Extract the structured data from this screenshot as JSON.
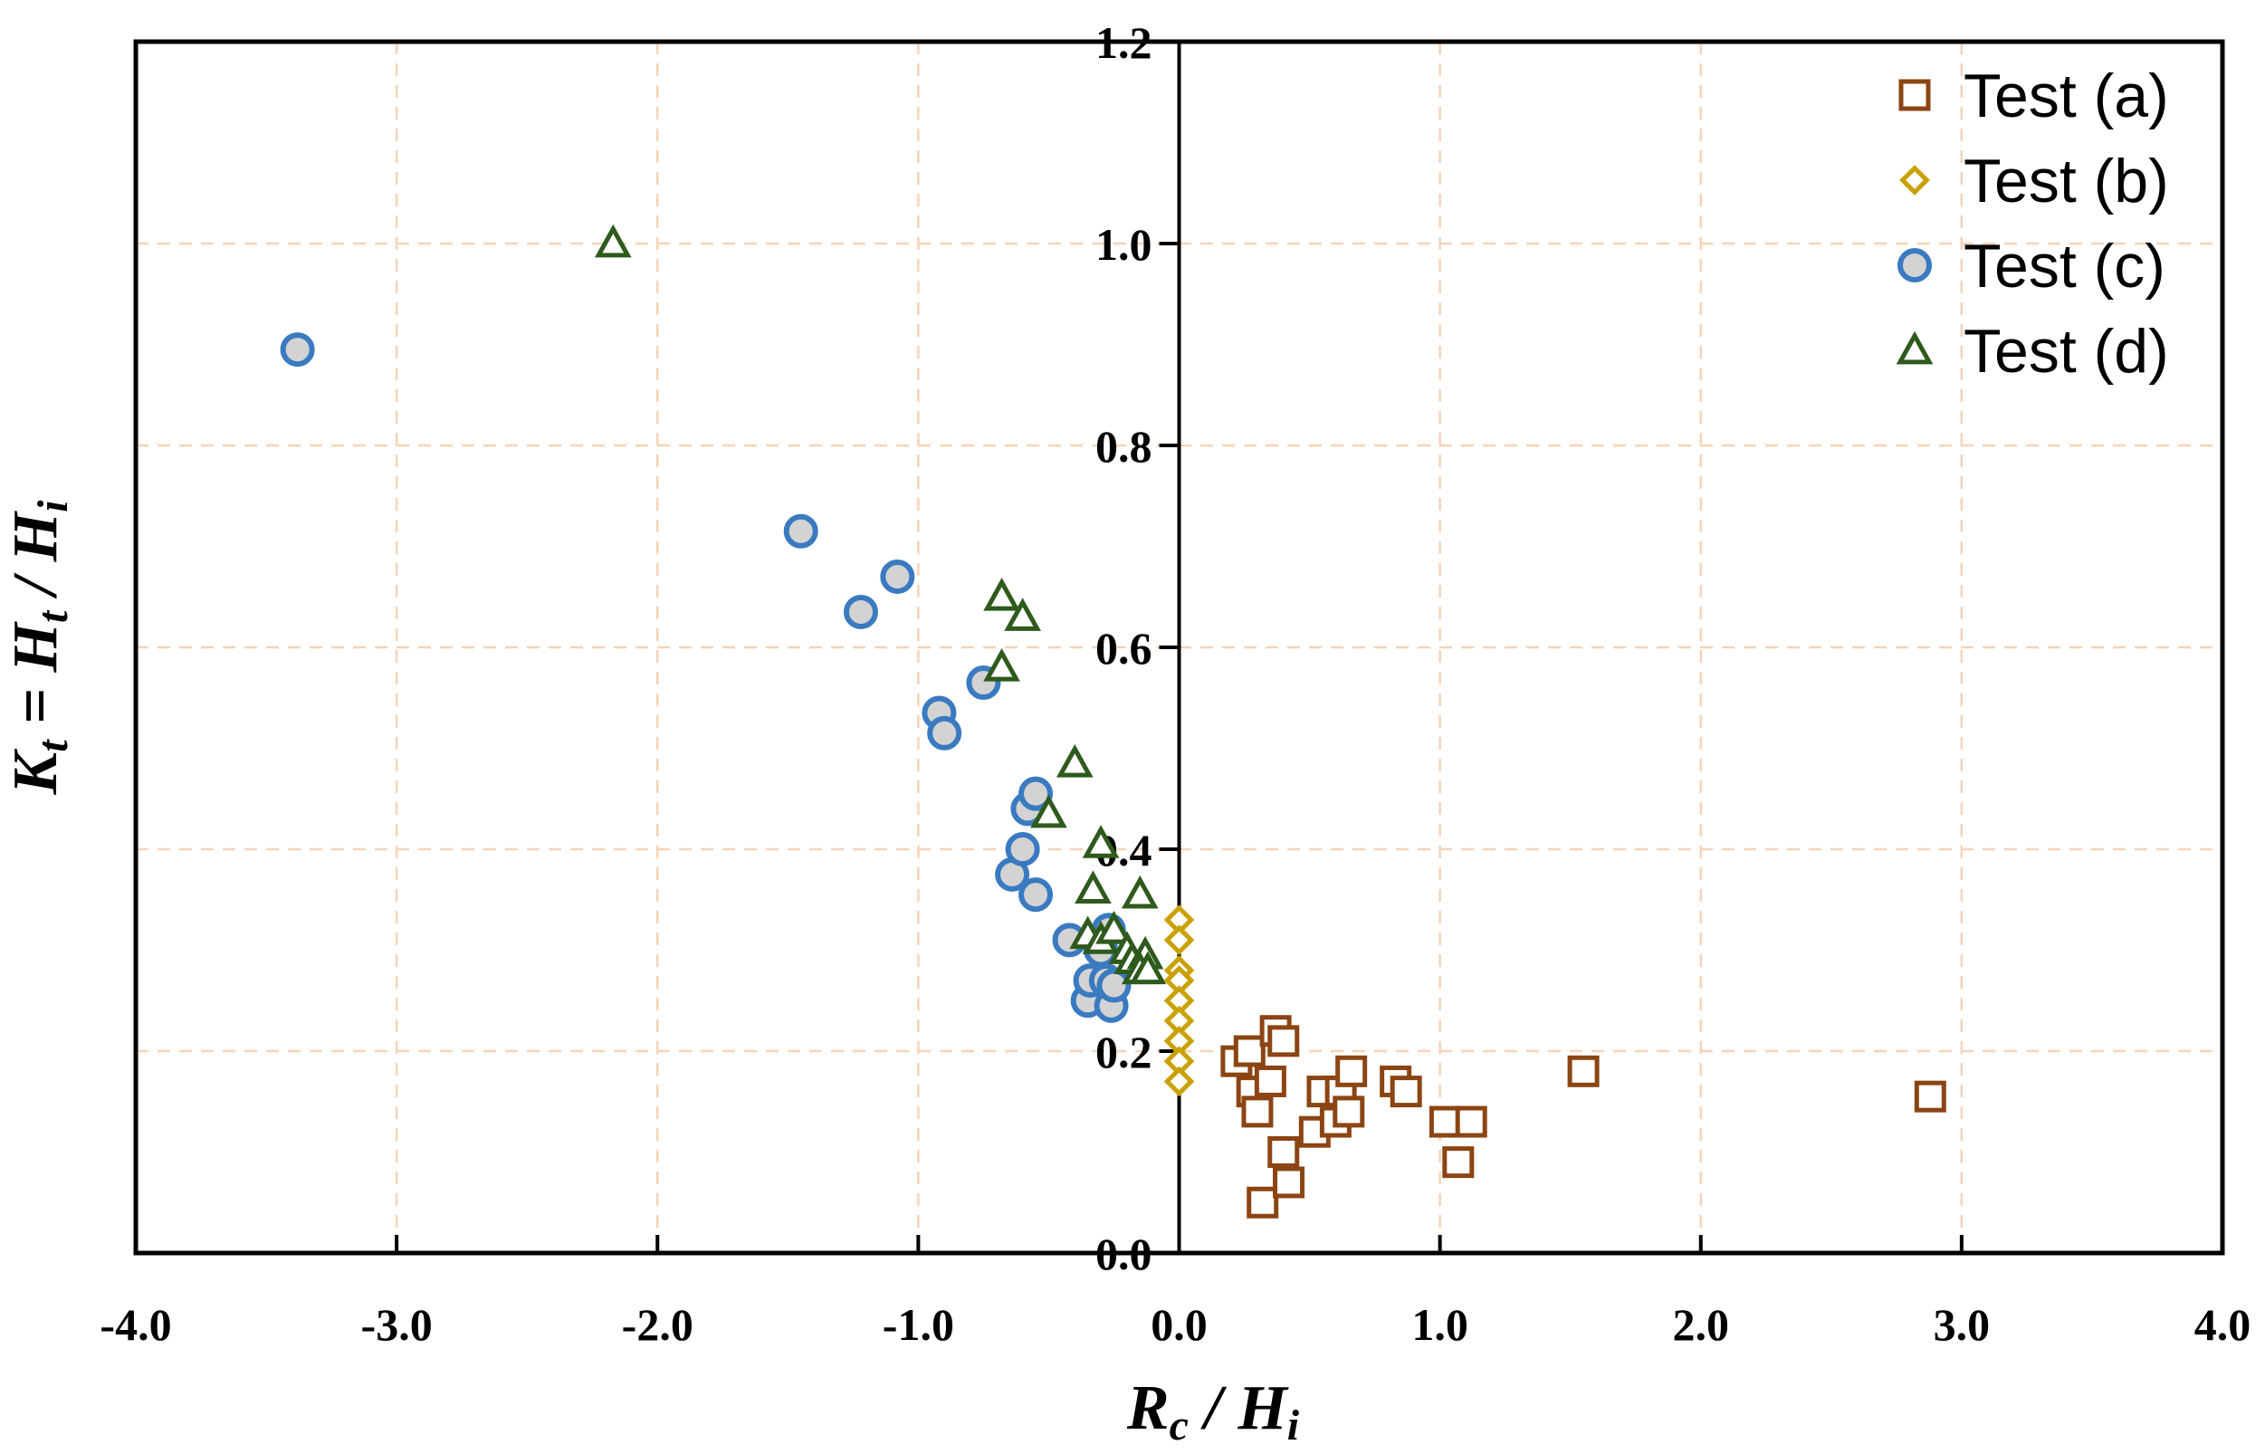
{
  "chart_data": {
    "type": "scatter",
    "title": "",
    "xlabel": "Rc / Hi",
    "ylabel": "Kt = Ht / Hi",
    "xlim": [
      -4.0,
      4.0
    ],
    "ylim": [
      0.0,
      1.2
    ],
    "grid": true,
    "legend_position": "top-right",
    "x_ticks": [
      -4.0,
      -3.0,
      -2.0,
      -1.0,
      0.0,
      1.0,
      2.0,
      3.0,
      4.0
    ],
    "x_tick_labels": [
      "-4.0",
      "-3.0",
      "-2.0",
      "-1.0",
      "0.0",
      "1.0",
      "2.0",
      "3.0",
      "4.0"
    ],
    "y_ticks": [
      0.0,
      0.2,
      0.4,
      0.6,
      0.8,
      1.0,
      1.2
    ],
    "y_tick_labels": [
      "0.0",
      "0.2",
      "0.4",
      "0.6",
      "0.8",
      "1.0",
      "1.2"
    ],
    "x_title": {
      "main": "R",
      "sub1": "c",
      "sep": " / ",
      "main2": "H",
      "sub2": "i"
    },
    "y_title": {
      "k": "K",
      "ksub": "t",
      "eq": " = ",
      "h1": "H",
      "h1sub": "t",
      "sep": " / ",
      "h2": "H",
      "h2sub": "i"
    },
    "series": [
      {
        "name": "Test (a)",
        "marker": "square",
        "color": "#8B4513",
        "fill": "#ffffff",
        "points": [
          [
            0.22,
            0.19
          ],
          [
            0.27,
            0.2
          ],
          [
            0.28,
            0.16
          ],
          [
            0.3,
            0.14
          ],
          [
            0.32,
            0.05
          ],
          [
            0.35,
            0.17
          ],
          [
            0.37,
            0.22
          ],
          [
            0.4,
            0.21
          ],
          [
            0.4,
            0.1
          ],
          [
            0.42,
            0.07
          ],
          [
            0.52,
            0.12
          ],
          [
            0.55,
            0.16
          ],
          [
            0.6,
            0.13
          ],
          [
            0.62,
            0.16
          ],
          [
            0.65,
            0.14
          ],
          [
            0.66,
            0.18
          ],
          [
            0.83,
            0.17
          ],
          [
            0.87,
            0.16
          ],
          [
            1.02,
            0.13
          ],
          [
            1.07,
            0.09
          ],
          [
            1.12,
            0.13
          ],
          [
            1.55,
            0.18
          ],
          [
            2.88,
            0.155
          ]
        ]
      },
      {
        "name": "Test (b)",
        "marker": "diamond",
        "color": "#C9A100",
        "fill": "#ffffff",
        "points": [
          [
            0.0,
            0.33
          ],
          [
            0.0,
            0.31
          ],
          [
            0.0,
            0.28
          ],
          [
            0.0,
            0.27
          ],
          [
            0.0,
            0.25
          ],
          [
            0.0,
            0.23
          ],
          [
            0.0,
            0.21
          ],
          [
            0.0,
            0.19
          ],
          [
            0.0,
            0.17
          ]
        ]
      },
      {
        "name": "Test (c)",
        "marker": "circle",
        "color": "#3A7AC0",
        "fill": "#D3D3D3",
        "points": [
          [
            -3.38,
            0.895
          ],
          [
            -1.45,
            0.715
          ],
          [
            -1.22,
            0.635
          ],
          [
            -1.08,
            0.67
          ],
          [
            -0.92,
            0.535
          ],
          [
            -0.9,
            0.515
          ],
          [
            -0.75,
            0.565
          ],
          [
            -0.64,
            0.375
          ],
          [
            -0.6,
            0.4
          ],
          [
            -0.58,
            0.44
          ],
          [
            -0.55,
            0.455
          ],
          [
            -0.55,
            0.355
          ],
          [
            -0.42,
            0.31
          ],
          [
            -0.35,
            0.25
          ],
          [
            -0.34,
            0.27
          ],
          [
            -0.3,
            0.3
          ],
          [
            -0.28,
            0.27
          ],
          [
            -0.27,
            0.32
          ],
          [
            -0.26,
            0.245
          ],
          [
            -0.25,
            0.265
          ]
        ]
      },
      {
        "name": "Test (d)",
        "marker": "triangle",
        "color": "#2E5A1C",
        "fill": "#ffffff",
        "points": [
          [
            -2.17,
            1.0
          ],
          [
            -0.68,
            0.65
          ],
          [
            -0.6,
            0.63
          ],
          [
            -0.68,
            0.58
          ],
          [
            -0.4,
            0.485
          ],
          [
            -0.5,
            0.435
          ],
          [
            -0.3,
            0.405
          ],
          [
            -0.33,
            0.36
          ],
          [
            -0.15,
            0.355
          ],
          [
            -0.35,
            0.315
          ],
          [
            -0.3,
            0.31
          ],
          [
            -0.25,
            0.32
          ],
          [
            -0.2,
            0.3
          ],
          [
            -0.18,
            0.29
          ],
          [
            -0.13,
            0.295
          ],
          [
            -0.15,
            0.28
          ],
          [
            -0.12,
            0.28
          ]
        ]
      }
    ]
  }
}
